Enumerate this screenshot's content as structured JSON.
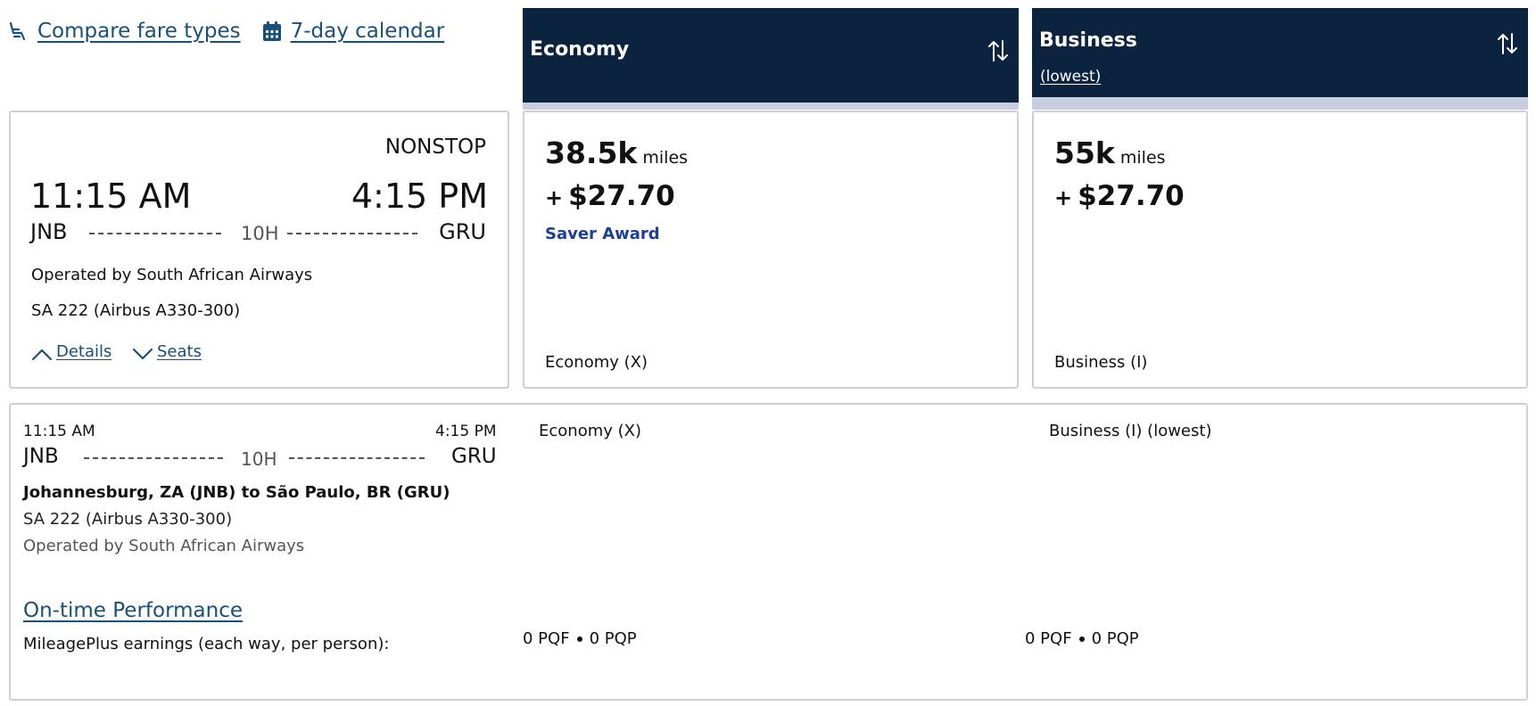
{
  "top_links": {
    "compare": "Compare fare types",
    "calendar": "7-day calendar"
  },
  "columns": {
    "economy": {
      "title": "Economy"
    },
    "business": {
      "title": "Business",
      "subtitle": "(lowest)"
    }
  },
  "flight": {
    "nonstop": "NONSTOP",
    "depart_time": "11:15 AM",
    "arrive_time": "4:15 PM",
    "origin": "JNB",
    "destination": "GRU",
    "duration": "10H",
    "operated_by": "Operated by South African Airways",
    "flight_number": "SA 222 (Airbus A330-300)",
    "details_label": "Details",
    "seats_label": "Seats"
  },
  "fares": {
    "economy": {
      "miles": "38.5k",
      "miles_unit": "miles",
      "plus": "+",
      "tax": "$27.70",
      "award": "Saver Award",
      "cabin": "Economy (X)"
    },
    "business": {
      "miles": "55k",
      "miles_unit": "miles",
      "plus": "+",
      "tax": "$27.70",
      "cabin": "Business (I)"
    }
  },
  "details": {
    "depart_time": "11:15 AM",
    "arrive_time": "4:15 PM",
    "origin": "JNB",
    "destination": "GRU",
    "duration": "10H",
    "route": "Johannesburg, ZA (JNB) to São Paulo, BR (GRU)",
    "flight_number": "SA 222 (Airbus A330-300)",
    "operated_by": "Operated by South African Airways",
    "on_time_label": "On-time Performance",
    "earnings_label": "MileagePlus earnings (each way, per person):",
    "economy_cabin": "Economy (X)",
    "business_cabin": "Business (I) (lowest)",
    "economy_pqf": "0 PQF",
    "economy_pqp": "0 PQP",
    "business_pqf": "0 PQF",
    "business_pqp": "0 PQP"
  },
  "colors": {
    "header_navy": "#0c2340",
    "link_blue": "#1a4f78",
    "saver_blue": "#1b3f94",
    "header_bar": "#c8cde0"
  },
  "icons": [
    "seat-icon",
    "calendar-icon",
    "sort-icon",
    "chevron-up-icon",
    "chevron-down-icon"
  ]
}
